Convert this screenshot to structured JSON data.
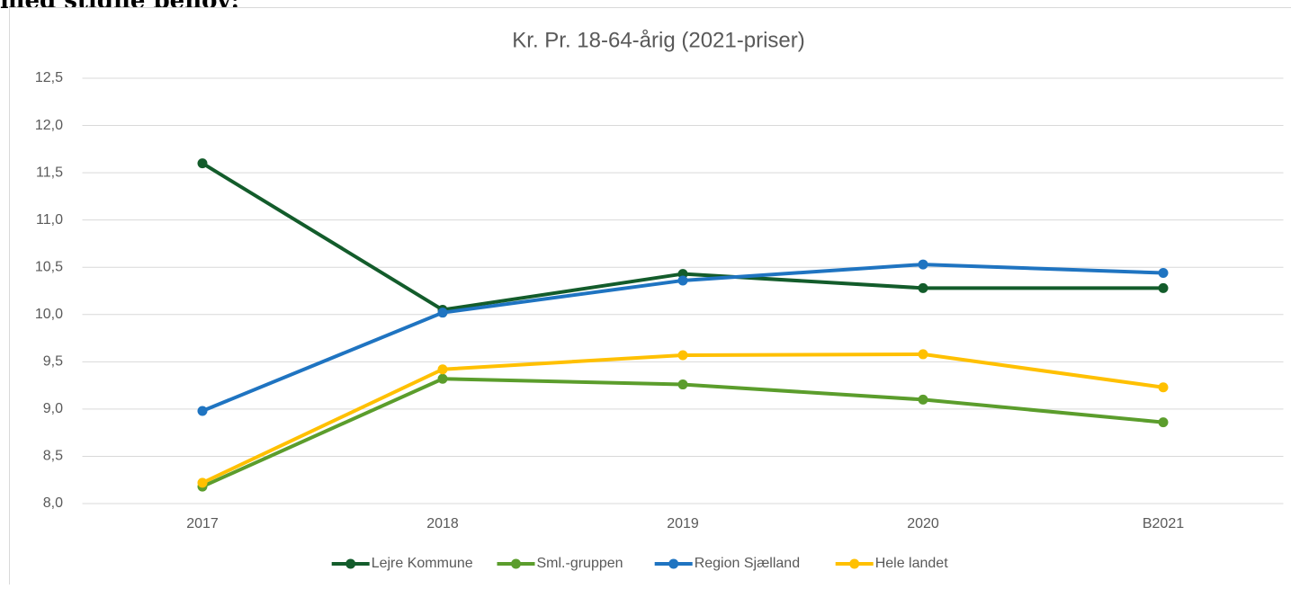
{
  "header_text": "med stigne behov:",
  "chart_data": {
    "type": "line",
    "title": "Kr. Pr. 18-64-årig (2021-priser)",
    "categories": [
      "2017",
      "2018",
      "2019",
      "2020",
      "B2021"
    ],
    "series": [
      {
        "name": "Lejre Kommune",
        "color": "#135c2b",
        "values": [
          11.6,
          10.05,
          10.43,
          10.28,
          10.28
        ]
      },
      {
        "name": "Sml.-gruppen",
        "color": "#5b9d2c",
        "values": [
          8.18,
          9.32,
          9.26,
          9.1,
          8.86
        ]
      },
      {
        "name": "Region Sjælland",
        "color": "#1f74c1",
        "values": [
          8.98,
          10.02,
          10.36,
          10.53,
          10.44
        ]
      },
      {
        "name": "Hele landet",
        "color": "#ffc000",
        "values": [
          8.22,
          9.42,
          9.57,
          9.58,
          9.23
        ]
      }
    ],
    "ylim": [
      8,
      12.5
    ],
    "yticks": [
      {
        "value": 8,
        "label": "8,0"
      },
      {
        "value": 8.5,
        "label": "8,5"
      },
      {
        "value": 9,
        "label": "9,0"
      },
      {
        "value": 9.5,
        "label": "9,5"
      },
      {
        "value": 10,
        "label": "10,0"
      },
      {
        "value": 10.5,
        "label": "10,5"
      },
      {
        "value": 11,
        "label": "11,0"
      },
      {
        "value": 11.5,
        "label": "11,5"
      },
      {
        "value": 12,
        "label": "12,0"
      },
      {
        "value": 12.5,
        "label": "12,5"
      }
    ],
    "grid": true,
    "legend": "bottom"
  }
}
